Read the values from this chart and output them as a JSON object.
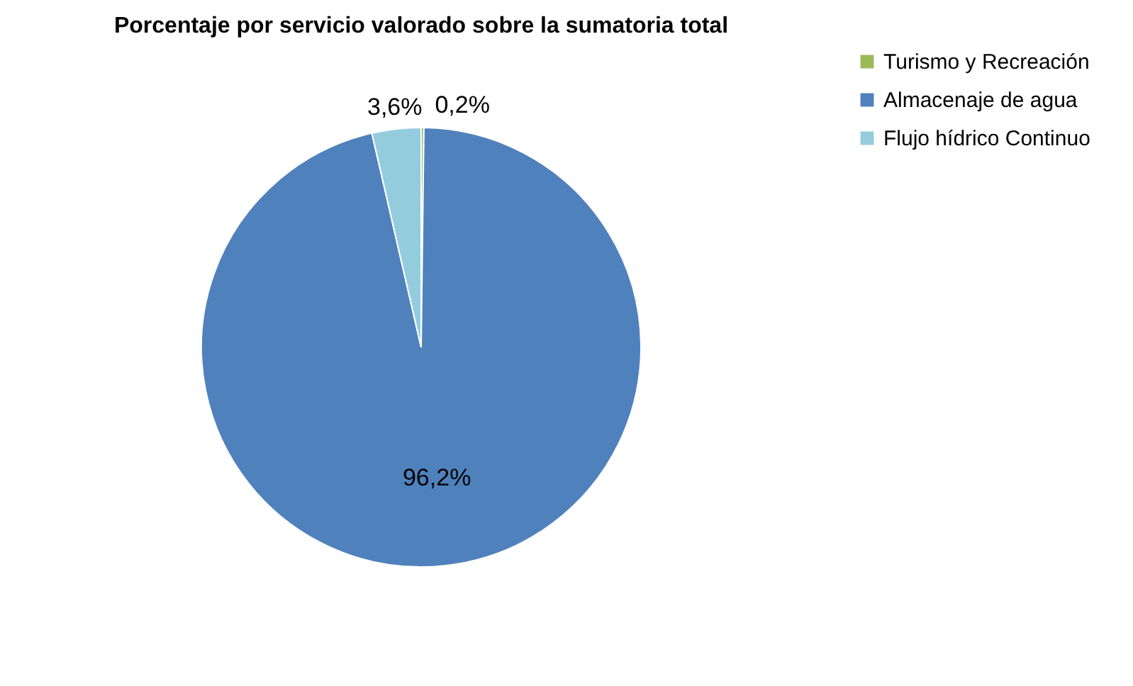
{
  "chart_data": {
    "type": "pie",
    "title": "Porcentaje por servicio valorado sobre la sumatoria  total",
    "categories": [
      "Turismo y Recreación",
      "Almacenaje de agua",
      "Flujo hídrico Continuo"
    ],
    "values": [
      0.2,
      96.2,
      3.6
    ],
    "colors": [
      "#9bbb59",
      "#4f81bd",
      "#93cddd"
    ],
    "value_labels": [
      "0,2%",
      "96,2%",
      "3,6%"
    ],
    "legend": "right"
  }
}
